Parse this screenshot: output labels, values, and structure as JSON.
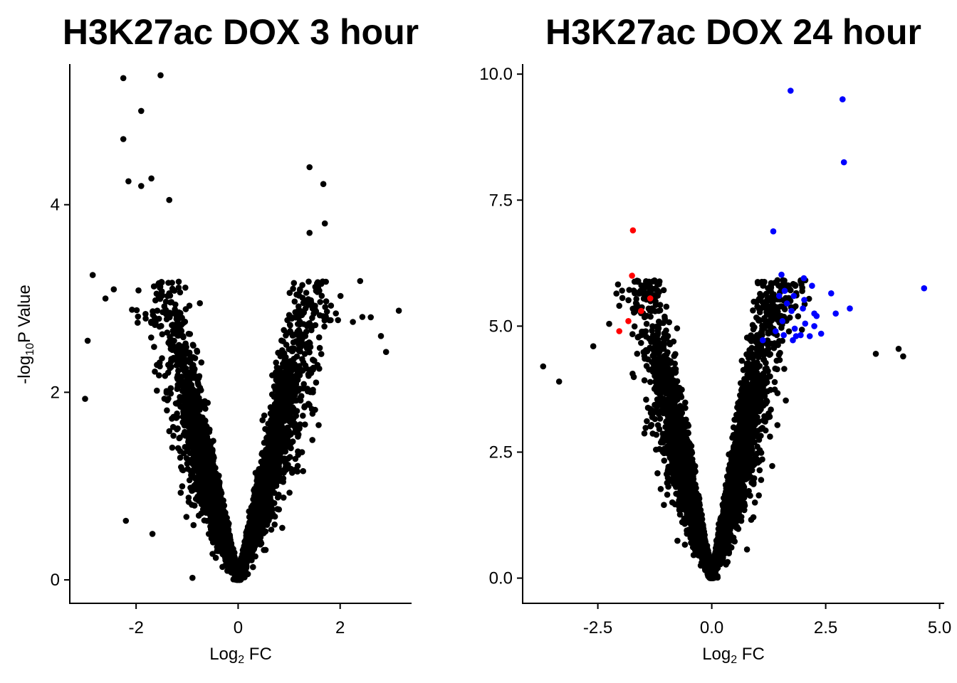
{
  "chart_data": [
    {
      "type": "scatter",
      "title": "H3K27ac DOX 3 hour",
      "xlabel_main": "Log",
      "xlabel_sub": "2",
      "xlabel_rest": " FC",
      "ylabel_pre": "-log",
      "ylabel_sub": "10",
      "ylabel_rest": "P Value",
      "xlim": [
        -3.3,
        3.4
      ],
      "ylim": [
        -0.25,
        5.5
      ],
      "xticks": [
        -2,
        0,
        2
      ],
      "xtick_labels": [
        "-2",
        "0",
        "2"
      ],
      "yticks": [
        0,
        2,
        4
      ],
      "ytick_labels": [
        "0",
        "2",
        "4"
      ],
      "grid": false,
      "legend": "none",
      "colors": {
        "nonsig": "#000000"
      },
      "density": {
        "left_scale": 1.9,
        "right_scale": 1.95,
        "n_points": 5200
      },
      "notable_points": [
        {
          "x": -2.25,
          "y": 5.35,
          "c": "nonsig"
        },
        {
          "x": -1.52,
          "y": 5.38,
          "c": "nonsig"
        },
        {
          "x": -1.9,
          "y": 5.0,
          "c": "nonsig"
        },
        {
          "x": -2.25,
          "y": 4.7,
          "c": "nonsig"
        },
        {
          "x": -2.15,
          "y": 4.25,
          "c": "nonsig"
        },
        {
          "x": -1.7,
          "y": 4.28,
          "c": "nonsig"
        },
        {
          "x": -1.9,
          "y": 4.2,
          "c": "nonsig"
        },
        {
          "x": -1.35,
          "y": 4.05,
          "c": "nonsig"
        },
        {
          "x": 1.4,
          "y": 4.4,
          "c": "nonsig"
        },
        {
          "x": 1.67,
          "y": 4.22,
          "c": "nonsig"
        },
        {
          "x": 1.7,
          "y": 3.8,
          "c": "nonsig"
        },
        {
          "x": 1.4,
          "y": 3.7,
          "c": "nonsig"
        },
        {
          "x": 3.15,
          "y": 2.87,
          "c": "nonsig"
        },
        {
          "x": 2.6,
          "y": 2.8,
          "c": "nonsig"
        },
        {
          "x": 2.8,
          "y": 2.6,
          "c": "nonsig"
        },
        {
          "x": 2.9,
          "y": 2.43,
          "c": "nonsig"
        },
        {
          "x": -3.0,
          "y": 1.93,
          "c": "nonsig"
        },
        {
          "x": -2.95,
          "y": 2.55,
          "c": "nonsig"
        },
        {
          "x": -2.85,
          "y": 3.25,
          "c": "nonsig"
        },
        {
          "x": -2.6,
          "y": 3.0,
          "c": "nonsig"
        },
        {
          "x": -2.2,
          "y": 0.63,
          "c": "nonsig"
        },
        {
          "x": -1.68,
          "y": 0.49,
          "c": "nonsig"
        },
        {
          "x": -0.75,
          "y": 2.95,
          "c": "nonsig"
        },
        {
          "x": 2.25,
          "y": 2.75,
          "c": "nonsig"
        }
      ]
    },
    {
      "type": "scatter",
      "title": "H3K27ac DOX 24 hour",
      "xlabel_main": "Log",
      "xlabel_sub": "2",
      "xlabel_rest": " FC",
      "xlim": [
        -4.15,
        5.1
      ],
      "ylim": [
        -0.5,
        10.2
      ],
      "xticks": [
        -2.5,
        0.0,
        2.5,
        5.0
      ],
      "xtick_labels": [
        "-2.5",
        "0.0",
        "2.5",
        "5.0"
      ],
      "yticks": [
        0.0,
        2.5,
        5.0,
        7.5,
        10.0
      ],
      "ytick_labels": [
        "0.0",
        "2.5",
        "5.0",
        "7.5",
        "10.0"
      ],
      "grid": false,
      "legend": "none",
      "colors": {
        "nonsig": "#000000",
        "down": "#ff0000",
        "up": "#0000ff"
      },
      "density": {
        "left_scale": 3.6,
        "right_scale": 3.9,
        "n_points": 5200
      },
      "notable_points": [
        {
          "x": -1.73,
          "y": 6.9,
          "c": "down"
        },
        {
          "x": -1.75,
          "y": 6.0,
          "c": "down"
        },
        {
          "x": -1.35,
          "y": 5.55,
          "c": "down"
        },
        {
          "x": -1.55,
          "y": 5.3,
          "c": "down"
        },
        {
          "x": -1.83,
          "y": 5.1,
          "c": "down"
        },
        {
          "x": -2.03,
          "y": 4.9,
          "c": "down"
        },
        {
          "x": 1.73,
          "y": 9.67,
          "c": "up"
        },
        {
          "x": 2.87,
          "y": 9.5,
          "c": "up"
        },
        {
          "x": 2.9,
          "y": 8.25,
          "c": "up"
        },
        {
          "x": 1.35,
          "y": 6.88,
          "c": "up"
        },
        {
          "x": 1.53,
          "y": 6.02,
          "c": "up"
        },
        {
          "x": 2.02,
          "y": 5.95,
          "c": "up"
        },
        {
          "x": 2.2,
          "y": 5.8,
          "c": "up"
        },
        {
          "x": 4.66,
          "y": 5.75,
          "c": "up"
        },
        {
          "x": 1.6,
          "y": 5.7,
          "c": "up"
        },
        {
          "x": 1.48,
          "y": 5.6,
          "c": "up"
        },
        {
          "x": 1.8,
          "y": 5.6,
          "c": "up"
        },
        {
          "x": 2.03,
          "y": 5.52,
          "c": "up"
        },
        {
          "x": 2.62,
          "y": 5.65,
          "c": "up"
        },
        {
          "x": 2.25,
          "y": 5.25,
          "c": "up"
        },
        {
          "x": 1.65,
          "y": 5.45,
          "c": "up"
        },
        {
          "x": 1.75,
          "y": 5.3,
          "c": "up"
        },
        {
          "x": 2.0,
          "y": 5.35,
          "c": "up"
        },
        {
          "x": 2.3,
          "y": 5.2,
          "c": "up"
        },
        {
          "x": 3.03,
          "y": 5.35,
          "c": "up"
        },
        {
          "x": 2.72,
          "y": 5.25,
          "c": "up"
        },
        {
          "x": 1.55,
          "y": 5.1,
          "c": "up"
        },
        {
          "x": 1.82,
          "y": 4.95,
          "c": "up"
        },
        {
          "x": 2.05,
          "y": 5.05,
          "c": "up"
        },
        {
          "x": 2.25,
          "y": 5.0,
          "c": "up"
        },
        {
          "x": 1.4,
          "y": 4.9,
          "c": "up"
        },
        {
          "x": 1.58,
          "y": 4.82,
          "c": "up"
        },
        {
          "x": 1.85,
          "y": 4.8,
          "c": "up"
        },
        {
          "x": 1.95,
          "y": 4.82,
          "c": "up"
        },
        {
          "x": 2.15,
          "y": 4.8,
          "c": "up"
        },
        {
          "x": 2.4,
          "y": 4.85,
          "c": "up"
        },
        {
          "x": 1.12,
          "y": 4.72,
          "c": "up"
        },
        {
          "x": 1.78,
          "y": 4.72,
          "c": "up"
        },
        {
          "x": -3.7,
          "y": 4.2,
          "c": "nonsig"
        },
        {
          "x": -3.35,
          "y": 3.9,
          "c": "nonsig"
        },
        {
          "x": 4.1,
          "y": 4.55,
          "c": "nonsig"
        },
        {
          "x": 4.2,
          "y": 4.4,
          "c": "nonsig"
        },
        {
          "x": 3.6,
          "y": 4.45,
          "c": "nonsig"
        },
        {
          "x": -2.6,
          "y": 4.6,
          "c": "nonsig"
        }
      ]
    }
  ]
}
